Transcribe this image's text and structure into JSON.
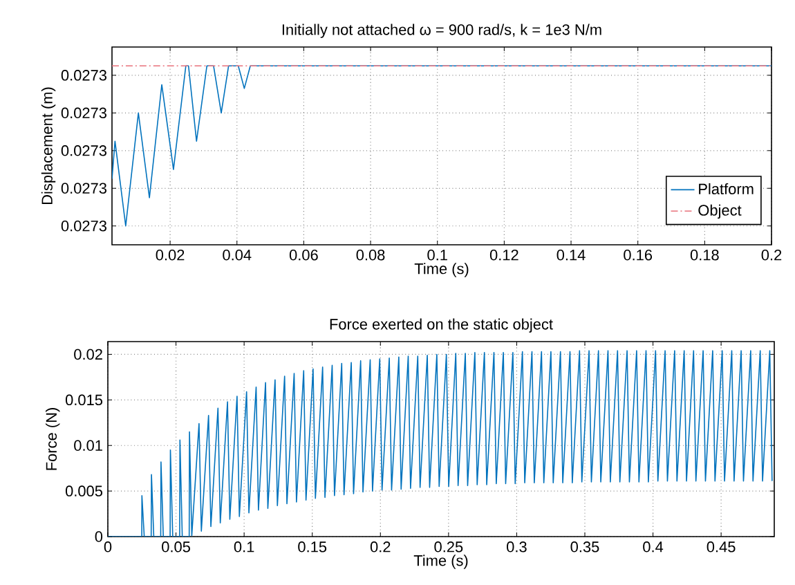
{
  "chart_data": [
    {
      "type": "line",
      "title": "Initially not attached  ω = 900 rad/s, k = 1e3 N/m",
      "xlabel": "Time (s)",
      "ylabel": "Displacement (m)",
      "xlim": [
        0.0026,
        0.2
      ],
      "ylim": [
        0.027295,
        0.0273055
      ],
      "xticks": [
        0.02,
        0.04,
        0.06,
        0.08,
        0.1,
        0.12,
        0.14,
        0.16,
        0.18,
        0.2
      ],
      "yticks": [
        {
          "value": 0.027296,
          "label": "0.0273"
        },
        {
          "value": 0.027298,
          "label": "0.0273"
        },
        {
          "value": 0.0273,
          "label": "0.0273"
        },
        {
          "value": 0.027302,
          "label": "0.0273"
        },
        {
          "value": 0.027304,
          "label": "0.0273"
        }
      ],
      "grid": true,
      "legend": "bottom right",
      "series": [
        {
          "name": "Platform",
          "color": "#0072bd",
          "line_style": "solid",
          "x": [
            0.0026,
            0.0035,
            0.0067,
            0.0105,
            0.0138,
            0.0175,
            0.021,
            0.0247,
            0.0255,
            0.0279,
            0.031,
            0.033,
            0.0353,
            0.0375,
            0.0404,
            0.0422,
            0.044,
            0.2
          ],
          "values": [
            0.0272985,
            0.0273005,
            0.027296,
            0.027302,
            0.0272975,
            0.0273035,
            0.027299,
            0.0273045,
            0.0273045,
            0.0273005,
            0.0273045,
            0.0273045,
            0.027302,
            0.0273045,
            0.0273045,
            0.0273033,
            0.0273045,
            0.0273045
          ]
        },
        {
          "name": "Object",
          "color": "#e8707a",
          "line_style": "dashdot",
          "x": [
            0.0026,
            0.2
          ],
          "values": [
            0.0273045,
            0.0273045
          ]
        }
      ]
    },
    {
      "type": "line",
      "title": "Force exerted on the static object",
      "xlabel": "Time (s)",
      "ylabel": "Force (N)",
      "xlim": [
        0,
        0.489
      ],
      "ylim": [
        0,
        0.0214
      ],
      "xticks": [
        0,
        0.05,
        0.1,
        0.15,
        0.2,
        0.25,
        0.3,
        0.35,
        0.4,
        0.45
      ],
      "yticks": [
        0,
        0.005,
        0.01,
        0.015,
        0.02
      ],
      "grid": true,
      "series": [
        {
          "color": "#0072bd",
          "line_style": "solid",
          "x": [
            0,
            0.0249,
            0.025,
            0.0267,
            0.0318,
            0.032,
            0.0337,
            0.0388,
            0.039,
            0.0407,
            0.0457,
            0.0459,
            0.0476,
            0.0527,
            0.0529,
            0.0546,
            0.0597,
            0.0599,
            0.0616,
            0.0669,
            0.0686,
            0.0739,
            0.0756,
            0.0808,
            0.0825,
            0.0878,
            0.0895,
            0.0948,
            0.0965,
            0.1018,
            0.1035,
            0.1088,
            0.1105,
            0.1157,
            0.1174,
            0.1227,
            0.1244,
            0.1297,
            0.1314,
            0.1367,
            0.1384,
            0.1437,
            0.1454,
            0.1506,
            0.1523,
            0.1576,
            0.1593,
            0.1646,
            0.1663,
            0.1716,
            0.1733,
            0.1786,
            0.1803,
            0.1855,
            0.1872,
            0.1925,
            0.1942,
            0.1995,
            0.2012,
            0.2065,
            0.2082,
            0.2135,
            0.2152,
            0.2204,
            0.2221,
            0.2274,
            0.2291,
            0.2344,
            0.2361,
            0.2414,
            0.2431,
            0.2484,
            0.2501,
            0.2553,
            0.257,
            0.2623,
            0.264,
            0.2693,
            0.271,
            0.2763,
            0.278,
            0.2833,
            0.285,
            0.2902,
            0.2919,
            0.2972,
            0.2989,
            0.3042,
            0.3059,
            0.3112,
            0.3129,
            0.3182,
            0.3199,
            0.3251,
            0.3268,
            0.3321,
            0.3338,
            0.3391,
            0.3408,
            0.3461,
            0.3478,
            0.3531,
            0.3548,
            0.36,
            0.3617,
            0.367,
            0.3687,
            0.374,
            0.3757,
            0.381,
            0.3827,
            0.388,
            0.3897,
            0.3949,
            0.3966,
            0.4019,
            0.4036,
            0.4089,
            0.4106,
            0.4159,
            0.4176,
            0.4229,
            0.4246,
            0.4298,
            0.4315,
            0.4368,
            0.4385,
            0.4438,
            0.4455,
            0.4508,
            0.4525,
            0.4578,
            0.4595,
            0.4647,
            0.4664,
            0.4717,
            0.4734,
            0.4787,
            0.4804,
            0.4857,
            0.4874
          ],
          "values": [
            0,
            0,
            0.0045,
            0,
            0,
            0.0068,
            0,
            0,
            0.0082,
            0,
            0,
            0.0095,
            0,
            0,
            0.0106,
            0,
            0,
            0.0115,
            0.0001,
            0.0124,
            0.0006,
            0.0133,
            0.0011,
            0.0141,
            0.0015,
            0.0148,
            0.0019,
            0.0154,
            0.0022,
            0.0159,
            0.0026,
            0.0164,
            0.0029,
            0.0169,
            0.0031,
            0.0172,
            0.0034,
            0.0176,
            0.0036,
            0.0179,
            0.0038,
            0.0182,
            0.004,
            0.0184,
            0.0042,
            0.0186,
            0.0043,
            0.0188,
            0.0045,
            0.019,
            0.0046,
            0.0191,
            0.0047,
            0.0193,
            0.0049,
            0.0194,
            0.005,
            0.0195,
            0.0051,
            0.0196,
            0.0051,
            0.0197,
            0.0052,
            0.0198,
            0.0053,
            0.0198,
            0.0054,
            0.0199,
            0.0054,
            0.02,
            0.0055,
            0.02,
            0.0055,
            0.0201,
            0.0056,
            0.0201,
            0.0056,
            0.0202,
            0.0057,
            0.0202,
            0.0057,
            0.0202,
            0.0058,
            0.0202,
            0.0058,
            0.0202,
            0.0058,
            0.0203,
            0.0059,
            0.0203,
            0.0059,
            0.0203,
            0.0059,
            0.0203,
            0.0059,
            0.0203,
            0.0059,
            0.0203,
            0.0059,
            0.0204,
            0.006,
            0.0204,
            0.006,
            0.0204,
            0.006,
            0.0204,
            0.006,
            0.0204,
            0.006,
            0.0204,
            0.006,
            0.0204,
            0.006,
            0.0204,
            0.006,
            0.0204,
            0.0061,
            0.0204,
            0.0061,
            0.0204,
            0.0061,
            0.0204,
            0.0061,
            0.0204,
            0.0061,
            0.0204,
            0.0061,
            0.0204,
            0.0061,
            0.0204,
            0.0061,
            0.0204,
            0.0061,
            0.0204,
            0.0061,
            0.0204,
            0.0061,
            0.0204,
            0.0061,
            0.0204,
            0.0061
          ]
        }
      ]
    }
  ]
}
